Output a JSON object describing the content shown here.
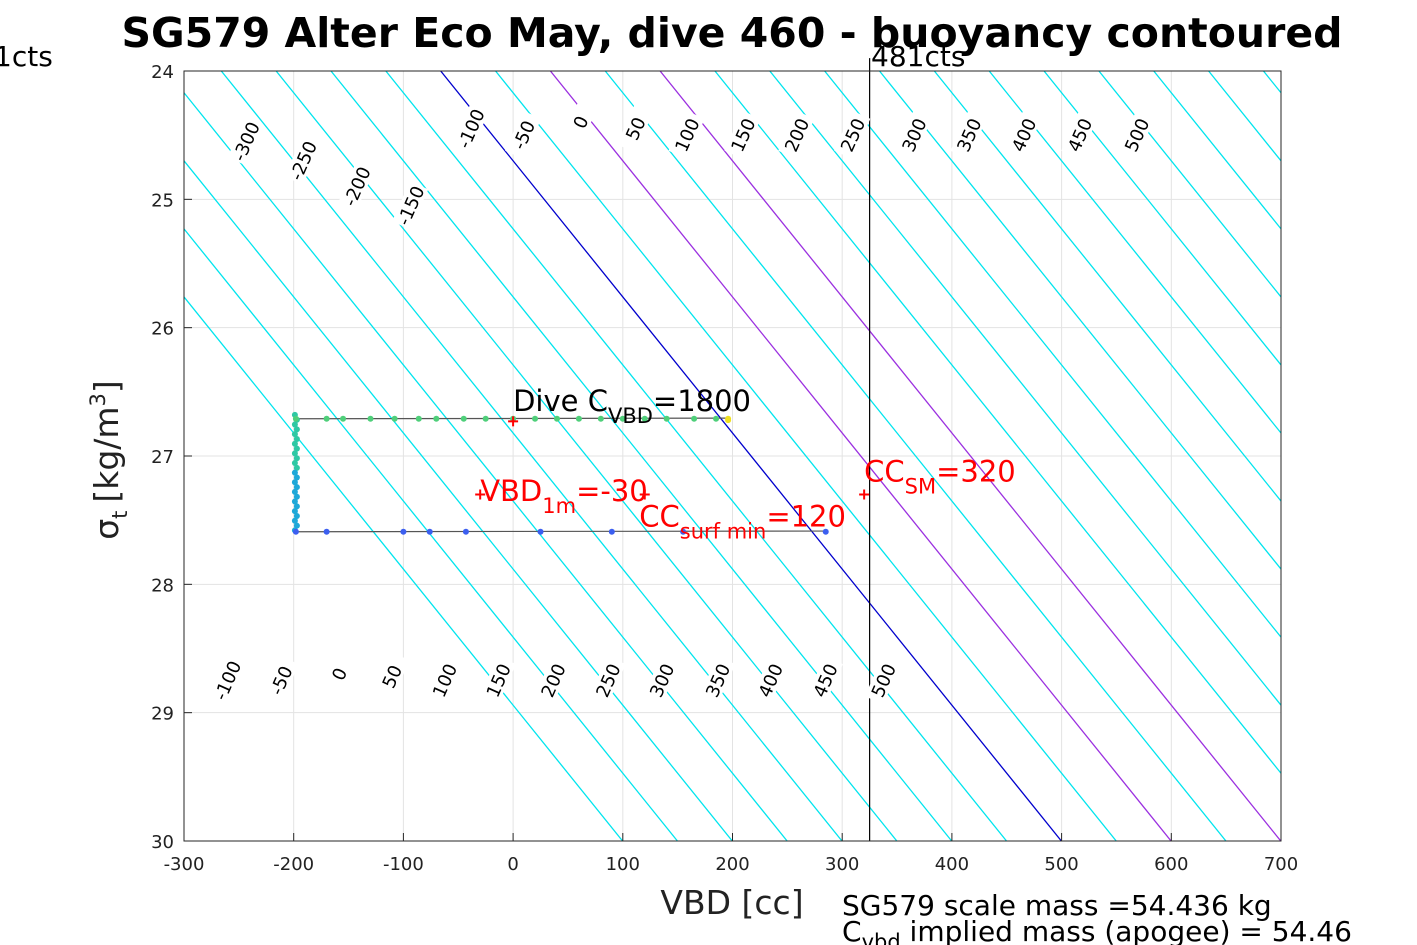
{
  "chart_data": {
    "type": "scatter",
    "title": "SG579 Alter Eco May, dive 460 - buoyancy contoured",
    "xlabel": "VBD [cc]",
    "ylabel": {
      "base": "σ",
      "sub": "t",
      "unit": "[kg/m",
      "sup": "3",
      "close": "]"
    },
    "xlim": [
      -300,
      700
    ],
    "ylim": [
      24,
      30
    ],
    "y_reversed": true,
    "grid": true,
    "xticks": [
      -300,
      -200,
      -100,
      0,
      100,
      200,
      300,
      400,
      500,
      600,
      700
    ],
    "yticks": [
      24,
      25,
      26,
      27,
      28,
      29,
      30
    ],
    "contour_slope_cc_per_sigma": 94.3,
    "contours": [
      {
        "level": -400,
        "intercept": -466,
        "color": "#00e5ee"
      },
      {
        "level": -350,
        "intercept": -416,
        "color": "#00e5ee"
      },
      {
        "level": -300,
        "intercept": -366,
        "color": "#00e5ee"
      },
      {
        "level": -250,
        "intercept": -316,
        "color": "#00e5ee"
      },
      {
        "level": -200,
        "intercept": -266,
        "color": "#00e5ee"
      },
      {
        "level": -150,
        "intercept": -216,
        "color": "#00e5ee"
      },
      {
        "level": -100,
        "intercept": -166,
        "color": "#00e5ee"
      },
      {
        "level": -50,
        "intercept": -116,
        "color": "#00e5ee"
      },
      {
        "level": 0,
        "intercept": -66,
        "color": "#0000cd"
      },
      {
        "level": 50,
        "intercept": -16,
        "color": "#00e5ee"
      },
      {
        "level": 100,
        "intercept": 34,
        "color": "#9b30e0"
      },
      {
        "level": 150,
        "intercept": 84,
        "color": "#00e5ee"
      },
      {
        "level": 200,
        "intercept": 134,
        "color": "#9b30e0"
      },
      {
        "level": 250,
        "intercept": 184,
        "color": "#00e5ee"
      },
      {
        "level": 300,
        "intercept": 234,
        "color": "#00e5ee"
      },
      {
        "level": 350,
        "intercept": 284,
        "color": "#00e5ee"
      },
      {
        "level": 400,
        "intercept": 334,
        "color": "#00e5ee"
      },
      {
        "level": 450,
        "intercept": 384,
        "color": "#00e5ee"
      },
      {
        "level": 500,
        "intercept": 434,
        "color": "#00e5ee"
      },
      {
        "level": 550,
        "intercept": 484,
        "color": "#00e5ee"
      },
      {
        "level": 600,
        "intercept": 534,
        "color": "#00e5ee"
      },
      {
        "level": 650,
        "intercept": 584,
        "color": "#00e5ee"
      },
      {
        "level": 700,
        "intercept": 634,
        "color": "#00e5ee"
      },
      {
        "level": 750,
        "intercept": 684,
        "color": "#00e5ee"
      },
      {
        "level": 800,
        "intercept": 734,
        "color": "#00e5ee"
      },
      {
        "level": 850,
        "intercept": 784,
        "color": "#00e5ee"
      },
      {
        "level": 900,
        "intercept": 834,
        "color": "#00e5ee"
      },
      {
        "level": 950,
        "intercept": 884,
        "color": "#00e5ee"
      }
    ],
    "contour_labels": [
      {
        "text": "-300",
        "x": -243,
        "y": 24.55
      },
      {
        "text": "-250",
        "x": -191,
        "y": 24.7
      },
      {
        "text": "-200",
        "x": -142,
        "y": 24.9
      },
      {
        "text": "-150",
        "x": -93,
        "y": 25.05
      },
      {
        "text": "-100",
        "x": -38,
        "y": 24.45
      },
      {
        "text": "-50",
        "x": 10,
        "y": 24.5
      },
      {
        "text": "0",
        "x": 62,
        "y": 24.4
      },
      {
        "text": "50",
        "x": 112,
        "y": 24.45
      },
      {
        "text": "100",
        "x": 159,
        "y": 24.5
      },
      {
        "text": "150",
        "x": 210,
        "y": 24.5
      },
      {
        "text": "200",
        "x": 259,
        "y": 24.5
      },
      {
        "text": "250",
        "x": 310,
        "y": 24.5
      },
      {
        "text": "300",
        "x": 366,
        "y": 24.5
      },
      {
        "text": "350",
        "x": 416,
        "y": 24.5
      },
      {
        "text": "400",
        "x": 466,
        "y": 24.5
      },
      {
        "text": "450",
        "x": 517,
        "y": 24.5
      },
      {
        "text": "500",
        "x": 569,
        "y": 24.5
      },
      {
        "text": "-100",
        "x": -260,
        "y": 28.75
      },
      {
        "text": "-50",
        "x": -211,
        "y": 28.75
      },
      {
        "text": "0",
        "x": -158,
        "y": 28.7
      },
      {
        "text": "50",
        "x": -110,
        "y": 28.72
      },
      {
        "text": "100",
        "x": -62,
        "y": 28.75
      },
      {
        "text": "150",
        "x": -13,
        "y": 28.75
      },
      {
        "text": "200",
        "x": 37,
        "y": 28.75
      },
      {
        "text": "250",
        "x": 87,
        "y": 28.75
      },
      {
        "text": "300",
        "x": 136,
        "y": 28.75
      },
      {
        "text": "350",
        "x": 187,
        "y": 28.75
      },
      {
        "text": "400",
        "x": 235,
        "y": 28.75
      },
      {
        "text": "450",
        "x": 285,
        "y": 28.75
      },
      {
        "text": "500",
        "x": 338,
        "y": 28.75
      }
    ],
    "vertical_line": {
      "x": 325,
      "label": "481cts",
      "left_label": "1cts"
    },
    "dive_path": [
      [
        -198,
        26.71
      ],
      [
        -170,
        26.71
      ],
      [
        -155,
        26.71
      ],
      [
        -130,
        26.71
      ],
      [
        -108,
        26.71
      ],
      [
        -86,
        26.71
      ],
      [
        -70,
        26.71
      ],
      [
        -45,
        26.71
      ],
      [
        -25,
        26.71
      ],
      [
        0,
        26.71
      ],
      [
        20,
        26.71
      ],
      [
        40,
        26.71
      ],
      [
        60,
        26.71
      ],
      [
        80,
        26.71
      ],
      [
        100,
        26.71
      ],
      [
        120,
        26.71
      ],
      [
        140,
        26.71
      ],
      [
        165,
        26.71
      ],
      [
        185,
        26.71
      ],
      [
        196,
        26.71
      ],
      [
        196,
        26.72
      ],
      [
        -198,
        27.59
      ],
      [
        -170,
        27.59
      ],
      [
        -100,
        27.59
      ],
      [
        -76,
        27.59
      ],
      [
        -43,
        27.59
      ],
      [
        25,
        27.59
      ],
      [
        90,
        27.59
      ],
      [
        155,
        27.59
      ],
      [
        285,
        27.59
      ]
    ],
    "vertical_cluster": {
      "x": -198,
      "y_top": 26.68,
      "y_bottom": 27.58
    },
    "annotations": [
      {
        "id": "dive_cvbd",
        "color": "black",
        "base": "Dive C",
        "sub": "VBD",
        "suffix": "=1800",
        "x": 0,
        "y": 26.65,
        "marker": {
          "x": 0,
          "y": 26.73
        }
      },
      {
        "id": "vbd_1m",
        "color": "red",
        "base": "VBD",
        "sub": "1m",
        "suffix": "=-30",
        "x": -30,
        "y": 27.35,
        "marker": {
          "x": -30,
          "y": 27.3
        }
      },
      {
        "id": "cc_surf_min",
        "color": "red",
        "base": "CC",
        "sub": "surf min",
        "suffix": "=120",
        "x": 115,
        "y": 27.55,
        "marker": {
          "x": 120,
          "y": 27.3
        }
      },
      {
        "id": "cc_sm",
        "color": "red",
        "base": "CC",
        "sub": "SM",
        "suffix": "=320",
        "x": 320,
        "y": 27.2,
        "marker": {
          "x": 320,
          "y": 27.3
        }
      }
    ],
    "footer": {
      "line1": "SG579 scale mass =54.436 kg",
      "line2_base": "C",
      "line2_sub": "vbd",
      "line2_rest": " implied mass (apogee) = 54.46"
    }
  }
}
